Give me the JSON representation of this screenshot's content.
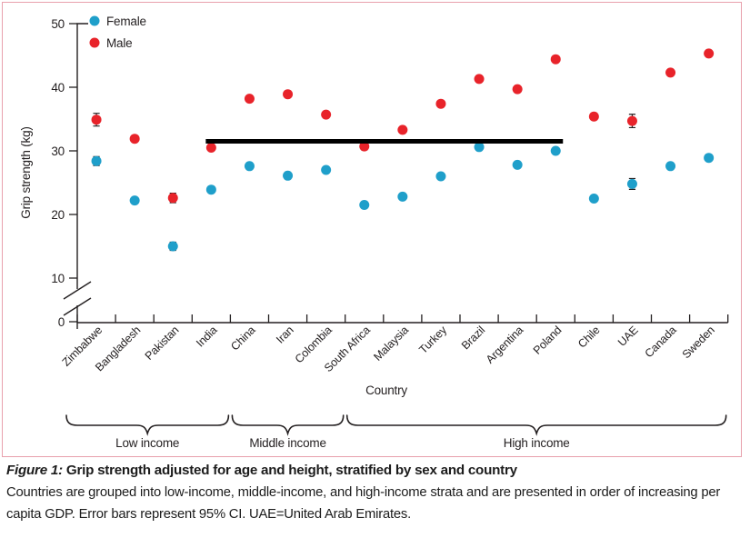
{
  "figure": {
    "caption_label": "Figure 1:",
    "caption_title": "Grip strength adjusted for age and height, stratified by sex and country",
    "caption_body": "Countries are grouped into low-income, middle-income, and high-income strata and are presented in order of increasing per capita GDP. Error bars represent 95% CI. UAE=United Arab Emirates."
  },
  "colors": {
    "female": "#1F9FCA",
    "male": "#E8232A",
    "border": "#E8A0AC",
    "text": "#231F20",
    "axis": "#231F20",
    "reference_line": "#000000"
  },
  "chart_data": {
    "type": "scatter",
    "title": "",
    "xlabel": "Country",
    "ylabel": "Grip strength (kg)",
    "ylim": [
      0,
      50
    ],
    "y_ticks": [
      50,
      40,
      30,
      20,
      10,
      0
    ],
    "axis_break_between_0_and_10": true,
    "grid": false,
    "legend_position": "top-left",
    "categories": [
      "Zimbabwe",
      "Bangladesh",
      "Pakistan",
      "India",
      "China",
      "Iran",
      "Colombia",
      "South Africa",
      "Malaysia",
      "Turkey",
      "Brazil",
      "Argentina",
      "Poland",
      "Chile",
      "UAE",
      "Canada",
      "Sweden"
    ],
    "series": [
      {
        "name": "Female",
        "color_key": "female",
        "values": [
          28.4,
          22.2,
          15.0,
          23.9,
          27.6,
          26.1,
          27.0,
          21.5,
          22.8,
          26.0,
          30.6,
          27.8,
          30.0,
          22.5,
          24.8,
          27.6,
          28.9
        ],
        "ci95": [
          0.7,
          0.45,
          0.65,
          0.3,
          0.25,
          0.4,
          0.4,
          0.5,
          0.35,
          0.4,
          0.4,
          0.4,
          0.4,
          0.4,
          0.85,
          0.3,
          0.35
        ]
      },
      {
        "name": "Male",
        "color_key": "male",
        "values": [
          34.9,
          31.9,
          22.6,
          30.5,
          38.2,
          38.9,
          35.7,
          30.7,
          33.3,
          37.4,
          41.3,
          39.7,
          44.4,
          35.4,
          34.7,
          42.3,
          45.3
        ],
        "ci95": [
          1.0,
          0.35,
          0.75,
          0.3,
          0.25,
          0.4,
          0.45,
          0.55,
          0.35,
          0.45,
          0.4,
          0.4,
          0.45,
          0.4,
          1.05,
          0.35,
          0.4
        ]
      }
    ],
    "groups": [
      {
        "label": "Low income",
        "from_index": 0,
        "to_index": 3
      },
      {
        "label": "Middle income",
        "from_index": 4,
        "to_index": 6
      },
      {
        "label": "High income",
        "from_index": 7,
        "to_index": 16
      }
    ],
    "reference_line": {
      "value": 31.5,
      "from_index": 3,
      "to_index": 12
    }
  }
}
